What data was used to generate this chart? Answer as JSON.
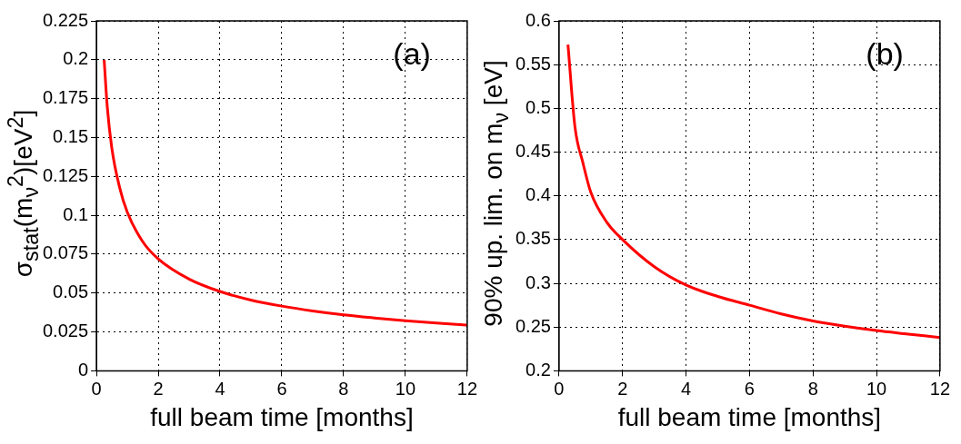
{
  "chart_data": [
    {
      "type": "line",
      "xlabel": "full beam time [months]",
      "ylabel": "σ$_{stat}$(m$_{ν}$$^{2}$)[eV$^{2}$]",
      "annotations": [
        "(a)"
      ],
      "x": [
        0.25,
        0.35,
        0.5,
        0.75,
        1,
        1.5,
        2,
        3,
        4,
        5,
        6,
        7,
        8,
        9,
        10,
        11,
        12
      ],
      "series": [
        {
          "color": "#ff0000",
          "values": [
            0.2,
            0.17,
            0.143,
            0.118,
            0.102,
            0.083,
            0.072,
            0.059,
            0.051,
            0.0455,
            0.0416,
            0.0385,
            0.036,
            0.034,
            0.0322,
            0.0307,
            0.0294
          ]
        }
      ],
      "xlim": [
        0,
        12
      ],
      "xticks": [
        0,
        2,
        4,
        6,
        8,
        10,
        12
      ],
      "ylim": [
        0,
        0.225
      ],
      "yticks": [
        0,
        0.025,
        0.05,
        0.075,
        0.1,
        0.125,
        0.15,
        0.175,
        0.2,
        0.225
      ],
      "grid": true,
      "line_style": "solid"
    },
    {
      "type": "line",
      "xlabel": "full beam time [months]",
      "ylabel": "90% up. lim. on m$_{ν}$ [eV]",
      "annotations": [
        "(b)"
      ],
      "x": [
        0.28,
        0.5,
        0.75,
        1,
        1.5,
        2,
        3,
        4,
        5,
        6,
        7,
        8,
        9,
        10,
        11,
        12
      ],
      "series": [
        {
          "color": "#ff0000",
          "values": [
            0.573,
            0.479,
            0.438,
            0.404,
            0.37,
            0.35,
            0.319,
            0.298,
            0.285,
            0.275,
            0.265,
            0.257,
            0.251,
            0.246,
            0.242,
            0.238
          ]
        }
      ],
      "xlim": [
        0,
        12
      ],
      "xticks": [
        0,
        2,
        4,
        6,
        8,
        10,
        12
      ],
      "ylim": [
        0.2,
        0.6
      ],
      "yticks": [
        0.2,
        0.25,
        0.3,
        0.35,
        0.4,
        0.45,
        0.5,
        0.55,
        0.6
      ],
      "grid": true,
      "line_style": "solid"
    }
  ]
}
